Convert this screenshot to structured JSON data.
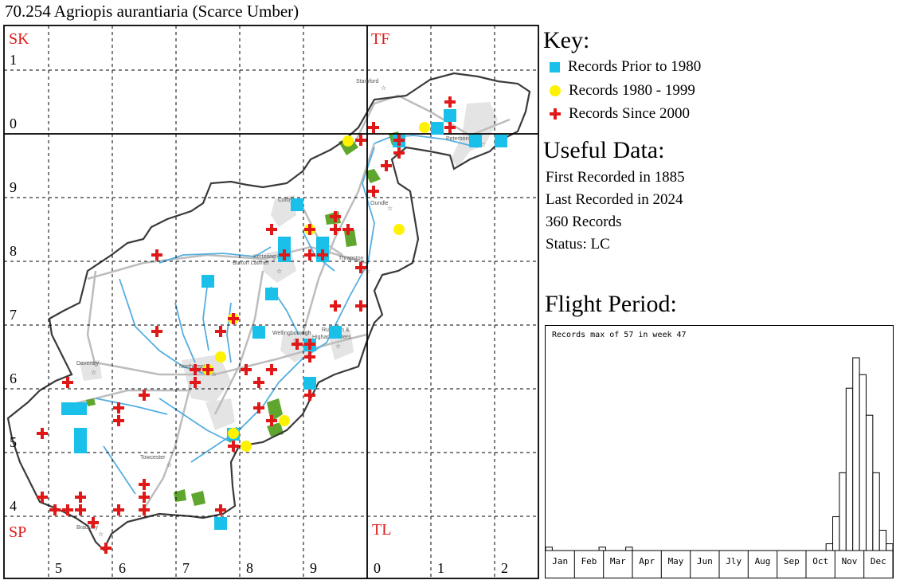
{
  "title": "70.254 Agriopis aurantiaria (Scarce Umber)",
  "map": {
    "grid_squares": {
      "sk": "SK",
      "tf": "TF",
      "sp": "SP",
      "tl": "TL"
    },
    "y_labels": [
      "1",
      "0",
      "9",
      "8",
      "7",
      "6",
      "5",
      "4"
    ],
    "x_labels": [
      "5",
      "6",
      "7",
      "8",
      "9",
      "0",
      "1",
      "2"
    ],
    "towns": [
      "Stamford",
      "Peterborough",
      "Corby",
      "Oundle",
      "Kettering &",
      "Burton Latimer",
      "Thrapston",
      "Daventry",
      "Northampton",
      "Wellingborough",
      "Rushden &",
      "Higham Ferrers",
      "Towcester",
      "Brackley"
    ],
    "colors": {
      "prior_1980": "#18c0ea",
      "between_1980_1999": "#fff200",
      "since_2000": "#e01818",
      "boundary": "#3a3a3a",
      "rivers": "#4aa8dc",
      "roads": "#b8b8b8",
      "urban": "#e2e2e2",
      "woodland": "#5aa02c",
      "grid_label": "#e01818"
    }
  },
  "key": {
    "heading": "Key:",
    "items": [
      {
        "label": "Records Prior to 1980",
        "symbol": "square-icon"
      },
      {
        "label": "Records 1980 - 1999",
        "symbol": "circle-icon"
      },
      {
        "label": "Records Since 2000",
        "symbol": "cross-icon"
      }
    ]
  },
  "useful_data": {
    "heading": "Useful Data:",
    "first_recorded": "First Recorded in 1885",
    "last_recorded": "Last Recorded in 2024",
    "records": "360 Records",
    "status": "Status: LC"
  },
  "flight_period": {
    "heading": "Flight Period:",
    "note": "Records max of 57 in week 47",
    "months": [
      "Jan",
      "Feb",
      "Mar",
      "Apr",
      "May",
      "Jun",
      "Jly",
      "Aug",
      "Sep",
      "Oct",
      "Nov",
      "Dec"
    ]
  },
  "chart_data": {
    "type": "bar",
    "title": "Records max of 57 in week 47",
    "x_unit": "week",
    "ylim": [
      0,
      57
    ],
    "weeks": [
      1,
      2,
      3,
      4,
      5,
      6,
      7,
      8,
      9,
      10,
      11,
      12,
      13,
      14,
      15,
      16,
      17,
      18,
      19,
      20,
      21,
      22,
      23,
      24,
      25,
      26,
      27,
      28,
      29,
      30,
      31,
      32,
      33,
      34,
      35,
      36,
      37,
      38,
      39,
      40,
      41,
      42,
      43,
      44,
      45,
      46,
      47,
      48,
      49,
      50,
      51,
      52
    ],
    "values": [
      1,
      0,
      0,
      0,
      0,
      0,
      0,
      0,
      1,
      0,
      0,
      0,
      1,
      0,
      0,
      0,
      0,
      0,
      0,
      0,
      0,
      0,
      0,
      0,
      0,
      0,
      0,
      0,
      0,
      0,
      0,
      0,
      0,
      0,
      0,
      0,
      0,
      0,
      0,
      0,
      0,
      0,
      2,
      10,
      23,
      48,
      57,
      52,
      40,
      23,
      6,
      2
    ]
  }
}
